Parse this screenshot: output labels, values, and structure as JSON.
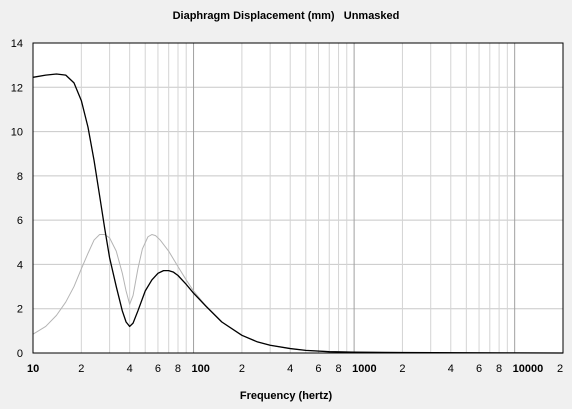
{
  "chart_data": {
    "type": "line",
    "title": "Diaphragm Displacement (mm)",
    "subtitle": "Unmasked",
    "xlabel": "Frequency (hertz)",
    "ylabel": "",
    "xscale": "log",
    "xlim": [
      10,
      20000
    ],
    "ylim": [
      0,
      14
    ],
    "grid": true,
    "yticks": [
      "0",
      "2",
      "4",
      "6",
      "8",
      "10",
      "12",
      "14"
    ],
    "xticks": [
      "10",
      "2",
      "4",
      "6",
      "8",
      "100",
      "2",
      "4",
      "6",
      "8",
      "1000",
      "2",
      "4",
      "6",
      "8",
      "10000",
      "2"
    ],
    "series": [
      {
        "color": "#000000",
        "points": [
          [
            10,
            12.45
          ],
          [
            12,
            12.55
          ],
          [
            14,
            12.6
          ],
          [
            16,
            12.55
          ],
          [
            18,
            12.2
          ],
          [
            20,
            11.4
          ],
          [
            22,
            10.2
          ],
          [
            24,
            8.7
          ],
          [
            26,
            7.1
          ],
          [
            28,
            5.6
          ],
          [
            30,
            4.3
          ],
          [
            33,
            3.0
          ],
          [
            36,
            1.9
          ],
          [
            38,
            1.4
          ],
          [
            40,
            1.2
          ],
          [
            42,
            1.35
          ],
          [
            45,
            1.9
          ],
          [
            50,
            2.8
          ],
          [
            55,
            3.3
          ],
          [
            60,
            3.6
          ],
          [
            65,
            3.72
          ],
          [
            70,
            3.72
          ],
          [
            75,
            3.65
          ],
          [
            80,
            3.5
          ],
          [
            90,
            3.1
          ],
          [
            100,
            2.7
          ],
          [
            120,
            2.1
          ],
          [
            150,
            1.4
          ],
          [
            200,
            0.8
          ],
          [
            250,
            0.5
          ],
          [
            300,
            0.35
          ],
          [
            400,
            0.2
          ],
          [
            500,
            0.12
          ],
          [
            700,
            0.06
          ],
          [
            1000,
            0.04
          ],
          [
            2000,
            0.02
          ],
          [
            5000,
            0.01
          ],
          [
            10000,
            0.005
          ],
          [
            20000,
            0.0
          ]
        ]
      },
      {
        "color": "#b4b4b4",
        "points": [
          [
            10,
            0.85
          ],
          [
            12,
            1.2
          ],
          [
            14,
            1.7
          ],
          [
            16,
            2.3
          ],
          [
            18,
            3.0
          ],
          [
            20,
            3.8
          ],
          [
            22,
            4.5
          ],
          [
            24,
            5.1
          ],
          [
            26,
            5.35
          ],
          [
            28,
            5.35
          ],
          [
            30,
            5.2
          ],
          [
            33,
            4.6
          ],
          [
            36,
            3.6
          ],
          [
            38,
            2.8
          ],
          [
            40,
            2.2
          ],
          [
            42,
            2.6
          ],
          [
            45,
            3.8
          ],
          [
            48,
            4.7
          ],
          [
            52,
            5.25
          ],
          [
            55,
            5.35
          ],
          [
            58,
            5.3
          ],
          [
            62,
            5.1
          ],
          [
            70,
            4.6
          ],
          [
            80,
            3.9
          ],
          [
            90,
            3.3
          ],
          [
            100,
            2.8
          ],
          [
            120,
            2.1
          ],
          [
            150,
            1.4
          ],
          [
            200,
            0.8
          ],
          [
            250,
            0.5
          ],
          [
            300,
            0.35
          ],
          [
            400,
            0.2
          ],
          [
            500,
            0.12
          ],
          [
            700,
            0.06
          ],
          [
            1000,
            0.04
          ],
          [
            2000,
            0.02
          ],
          [
            5000,
            0.01
          ],
          [
            10000,
            0.005
          ],
          [
            20000,
            0.0
          ]
        ]
      }
    ]
  }
}
